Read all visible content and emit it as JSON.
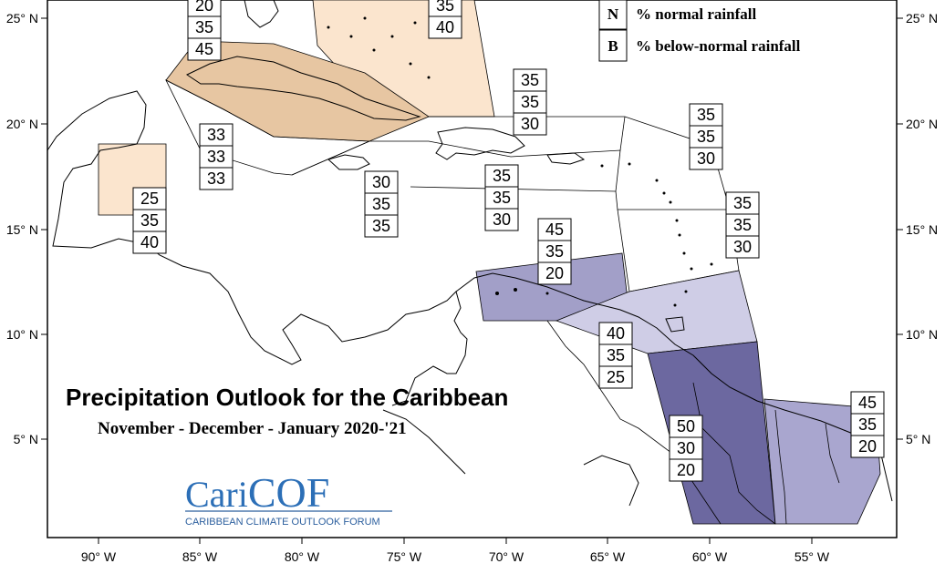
{
  "title": "Precipitation Outlook for the Caribbean",
  "subtitle": "November - December - January 2020-'21",
  "legend": [
    {
      "key": "N",
      "text": "% normal rainfall"
    },
    {
      "key": "B",
      "text": "% below-normal rainfall"
    }
  ],
  "logo": {
    "main_a": "Cari",
    "main_b": "COF",
    "sub": "CARIBBEAN CLIMATE OUTLOOK FORUM"
  },
  "axes": {
    "x_ticks": [
      "90° W",
      "85° W",
      "80° W",
      "75° W",
      "70° W",
      "65° W",
      "60° W",
      "55° W"
    ],
    "y_ticks": [
      "25° N",
      "20° N",
      "15° N",
      "10° N",
      "5° N"
    ]
  },
  "colors": {
    "above_40": "#e7c6a2",
    "above_light": "#fbe5ce",
    "wet_45": "#a29fc8",
    "wet_40": "#cfcde6",
    "wet_50": "#6c68a0",
    "wet_45_south": "#a9a6cf"
  },
  "regions": [
    {
      "name": "bahamas",
      "values": [
        "35",
        "40"
      ]
    },
    {
      "name": "cuba",
      "values": [
        "20",
        "35",
        "45"
      ]
    },
    {
      "name": "western-caribbean",
      "values": [
        "33",
        "33",
        "33"
      ]
    },
    {
      "name": "belize",
      "values": [
        "25",
        "35",
        "40"
      ]
    },
    {
      "name": "jamaica",
      "values": [
        "30",
        "35",
        "35"
      ]
    },
    {
      "name": "hispaniola-north",
      "values": [
        "35",
        "35",
        "30"
      ]
    },
    {
      "name": "hispaniola-south",
      "values": [
        "35",
        "35",
        "30"
      ]
    },
    {
      "name": "leeward-islands",
      "values": [
        "35",
        "35",
        "30"
      ]
    },
    {
      "name": "windward-islands",
      "values": [
        "35",
        "35",
        "30"
      ]
    },
    {
      "name": "abc-islands",
      "values": [
        "45",
        "35",
        "20"
      ]
    },
    {
      "name": "trinidad",
      "values": [
        "40",
        "35",
        "25"
      ]
    },
    {
      "name": "guyana",
      "values": [
        "50",
        "30",
        "20"
      ]
    },
    {
      "name": "suriname-guiana",
      "values": [
        "45",
        "35",
        "20"
      ]
    }
  ]
}
